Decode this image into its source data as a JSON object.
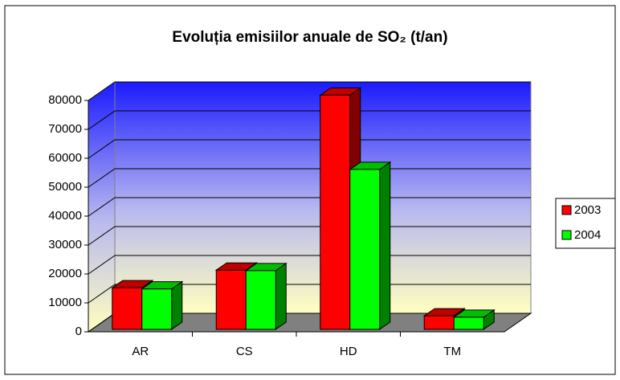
{
  "chart_data": {
    "type": "bar3d",
    "title": "Evoluția emisiilor anuale de SO₂ (t/an)",
    "categories": [
      "AR",
      "CS",
      "HD",
      "TM"
    ],
    "series": [
      {
        "name": "2003",
        "color": "#ff0000",
        "values": [
          14400,
          20500,
          81000,
          4700
        ]
      },
      {
        "name": "2004",
        "color": "#00ff00",
        "values": [
          14000,
          20300,
          55300,
          4200
        ]
      }
    ],
    "ylim": [
      0,
      80000
    ],
    "yticks": [
      0,
      10000,
      20000,
      30000,
      40000,
      50000,
      60000,
      70000,
      80000
    ],
    "grid": true,
    "legend": "right"
  }
}
